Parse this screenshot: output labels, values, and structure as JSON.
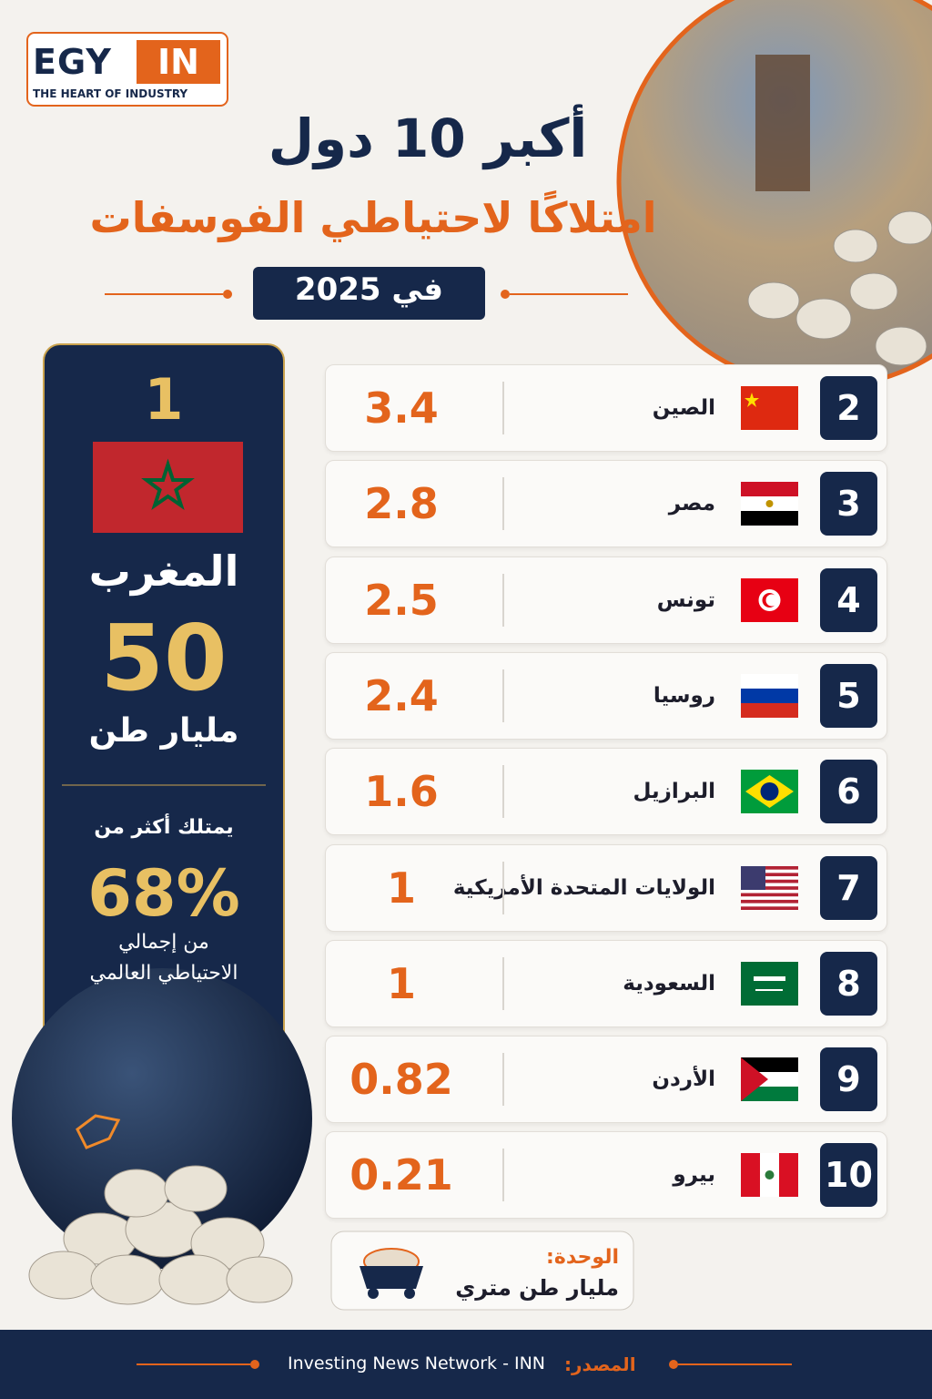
{
  "logo": {
    "name_left": "EGY",
    "name_right": "IN",
    "tagline": "THE HEART OF INDUSTRY"
  },
  "header": {
    "title": "أكبر 10 دول",
    "subtitle": "امتلاكًا لاحتياطي الفوسفات",
    "year": "في 2025"
  },
  "leader": {
    "rank": "1",
    "country": "المغرب",
    "value": "50",
    "unit": "مليار طن",
    "share_intro": "يمتلك أكثر من",
    "share": "68%",
    "share_note_1": "من إجمالي",
    "share_note_2": "الاحتياطي العالمي"
  },
  "table": {
    "rows": [
      [
        "2",
        "الصين",
        "3.4"
      ],
      [
        "3",
        "مصر",
        "2.8"
      ],
      [
        "4",
        "تونس",
        "2.5"
      ],
      [
        "5",
        "روسيا",
        "2.4"
      ],
      [
        "6",
        "البرازيل",
        "1.6"
      ],
      [
        "7",
        "الولايات المتحدة الأمريكية",
        "1"
      ],
      [
        "8",
        "السعودية",
        "1"
      ],
      [
        "9",
        "الأردن",
        "0.82"
      ],
      [
        "10",
        "بيرو",
        "0.21"
      ]
    ]
  },
  "unit_box": {
    "label": "الوحدة:",
    "unit": "مليار طن متري"
  },
  "footer": {
    "source_label": "المصدر:",
    "source": "Investing News Network - INN"
  }
}
